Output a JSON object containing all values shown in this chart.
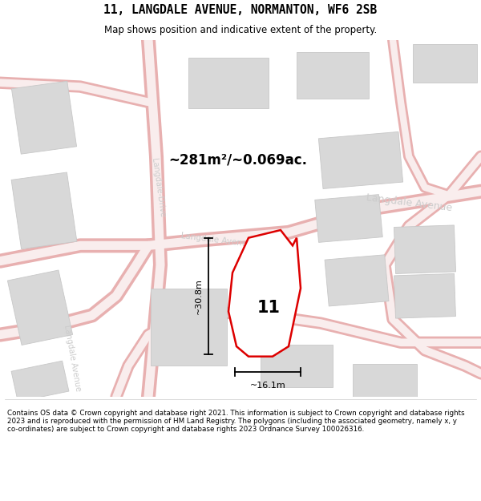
{
  "title": "11, LANGDALE AVENUE, NORMANTON, WF6 2SB",
  "subtitle": "Map shows position and indicative extent of the property.",
  "footer": "Contains OS data © Crown copyright and database right 2021. This information is subject to Crown copyright and database rights 2023 and is reproduced with the permission of HM Land Registry. The polygons (including the associated geometry, namely x, y co-ordinates) are subject to Crown copyright and database rights 2023 Ordnance Survey 100026316.",
  "area_label": "~281m²/~0.069ac.",
  "width_label": "~16.1m",
  "height_label": "~30.8m",
  "property_number": "11",
  "map_bg": "#f7f7f7",
  "road_outer_color": "#e8b0b0",
  "road_inner_color": "#f9eded",
  "building_color": "#d8d8d8",
  "building_edge": "#c8c8c8",
  "property_line_color": "#dd0000",
  "property_fill": "#ffffff",
  "street_label_color": "#cccccc",
  "dim_color": "#000000",
  "title_font": "monospace",
  "subtitle_font": "sans-serif"
}
